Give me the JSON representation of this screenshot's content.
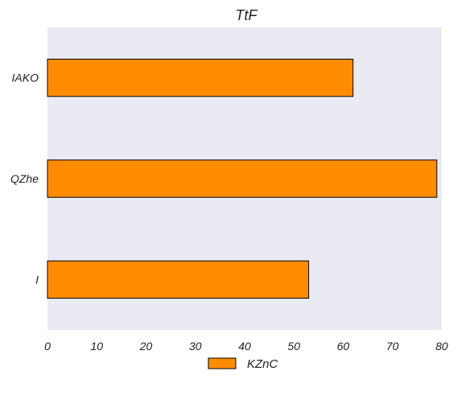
{
  "chart_data": {
    "type": "bar",
    "orientation": "horizontal",
    "title": "TtF",
    "xlabel": "",
    "ylabel": "",
    "categories": [
      "IAKO",
      "QZhe",
      "I"
    ],
    "series": [
      {
        "name": "KZnC",
        "values": [
          62,
          79,
          53
        ]
      }
    ],
    "xlim": [
      0,
      80
    ],
    "xticks": [
      "0",
      "10",
      "20",
      "30",
      "40",
      "50",
      "60",
      "70",
      "80"
    ],
    "grid": false,
    "legend_position": "bottom-center",
    "colors": {
      "bar": "#ff8c00",
      "bar_edge": "#000000",
      "plot_background": "#eaeaf2"
    }
  }
}
